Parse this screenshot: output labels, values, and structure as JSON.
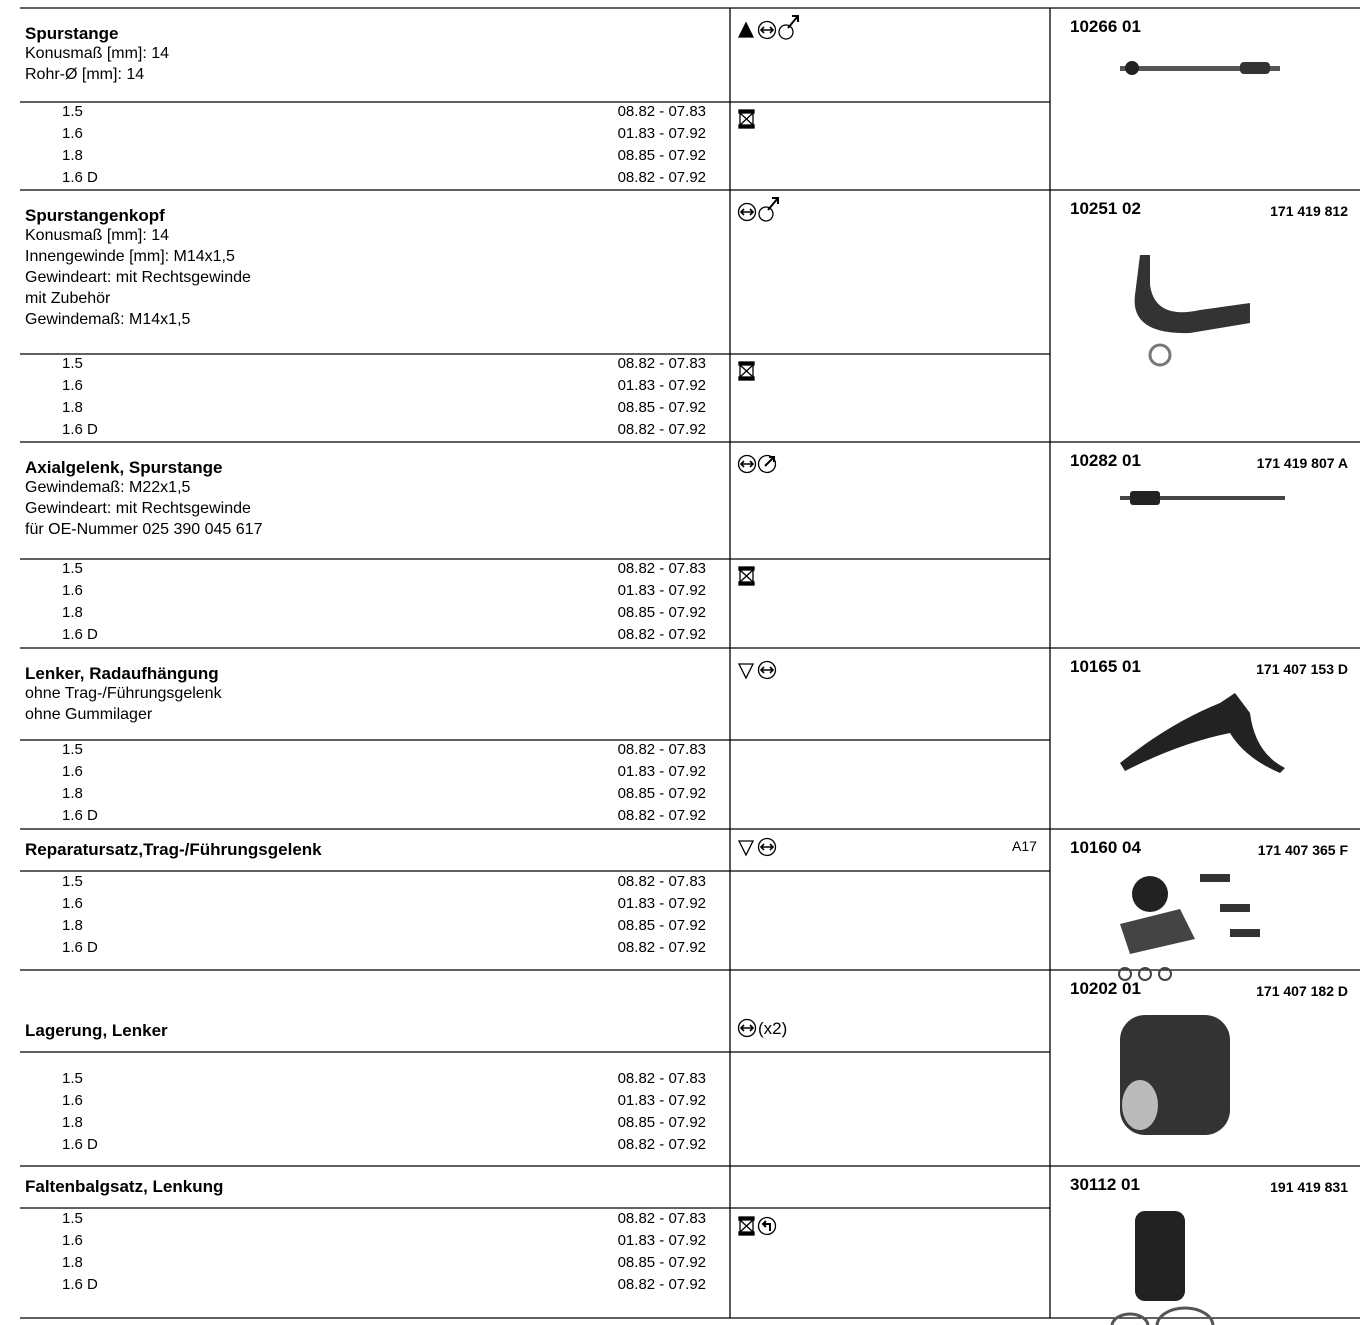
{
  "sections": [
    {
      "title": "Spurstange",
      "details": [
        "Konusmaß [mm]: 14",
        "Rohr-Ø [mm]: 14"
      ],
      "part_no": "10266 01",
      "rows": [
        {
          "engine": "1.5",
          "period": "08.82  -  07.83"
        },
        {
          "engine": "1.6",
          "period": "01.83  -  07.92"
        },
        {
          "engine": "1.8",
          "period": "08.85  -  07.92"
        },
        {
          "engine": "1.6 D",
          "period": "08.82  -  07.92"
        }
      ]
    },
    {
      "title": "Spurstangenkopf",
      "details": [
        "Konusmaß [mm]: 14",
        "Innengewinde [mm]: M14x1,5",
        "Gewindeart: mit Rechtsgewinde",
        "mit Zubehör",
        "Gewindemaß: M14x1,5"
      ],
      "part_no": "10251 02",
      "oe_no": "171 419 812",
      "rows": [
        {
          "engine": "1.5",
          "period": "08.82  -  07.83"
        },
        {
          "engine": "1.6",
          "period": "01.83  -  07.92"
        },
        {
          "engine": "1.8",
          "period": "08.85  -  07.92"
        },
        {
          "engine": "1.6 D",
          "period": "08.82  -  07.92"
        }
      ]
    },
    {
      "title": "Axialgelenk, Spurstange",
      "details": [
        "Gewindemaß: M22x1,5",
        "Gewindeart: mit Rechtsgewinde",
        "für OE-Nummer 025 390 045 617"
      ],
      "part_no": "10282 01",
      "oe_no": "171 419 807 A",
      "rows": [
        {
          "engine": "1.5",
          "period": "08.82  -  07.83"
        },
        {
          "engine": "1.6",
          "period": "01.83  -  07.92"
        },
        {
          "engine": "1.8",
          "period": "08.85  -  07.92"
        },
        {
          "engine": "1.6 D",
          "period": "08.82  -  07.92"
        }
      ]
    },
    {
      "title": "Lenker, Radaufhängung",
      "details": [
        "ohne Trag-/Führungsgelenk",
        "ohne Gummilager"
      ],
      "part_no": "10165 01",
      "oe_no": "171 407 153 D",
      "rows": [
        {
          "engine": "1.5",
          "period": "08.82  -  07.83"
        },
        {
          "engine": "1.6",
          "period": "01.83  -  07.92"
        },
        {
          "engine": "1.8",
          "period": "08.85  -  07.92"
        },
        {
          "engine": "1.6 D",
          "period": "08.82  -  07.92"
        }
      ]
    },
    {
      "title": "Reparatursatz,Trag-/Führungsgelenk",
      "details": [],
      "note": "A17",
      "part_no": "10160 04",
      "oe_no": "171 407 365 F",
      "rows": [
        {
          "engine": "1.5",
          "period": "08.82  -  07.83"
        },
        {
          "engine": "1.6",
          "period": "01.83  -  07.92"
        },
        {
          "engine": "1.8",
          "period": "08.85  -  07.92"
        },
        {
          "engine": "1.6 D",
          "period": "08.82  -  07.92"
        }
      ]
    },
    {
      "title": "Lagerung, Lenker",
      "details": [],
      "icon_note": "(x2)",
      "part_no": "10202 01",
      "oe_no": "171 407 182 D",
      "rows": [
        {
          "engine": "1.5",
          "period": "08.82  -  07.83"
        },
        {
          "engine": "1.6",
          "period": "01.83  -  07.92"
        },
        {
          "engine": "1.8",
          "period": "08.85  -  07.92"
        },
        {
          "engine": "1.6 D",
          "period": "08.82  -  07.92"
        }
      ]
    },
    {
      "title": "Faltenbalgsatz, Lenkung",
      "details": [],
      "part_no": "30112 01",
      "oe_no": "191 419 831",
      "rows": [
        {
          "engine": "1.5",
          "period": "08.82  -  07.83"
        },
        {
          "engine": "1.6",
          "period": "01.83  -  07.92"
        },
        {
          "engine": "1.8",
          "period": "08.85  -  07.92"
        },
        {
          "engine": "1.6 D",
          "period": "08.82  -  07.92"
        }
      ]
    }
  ]
}
